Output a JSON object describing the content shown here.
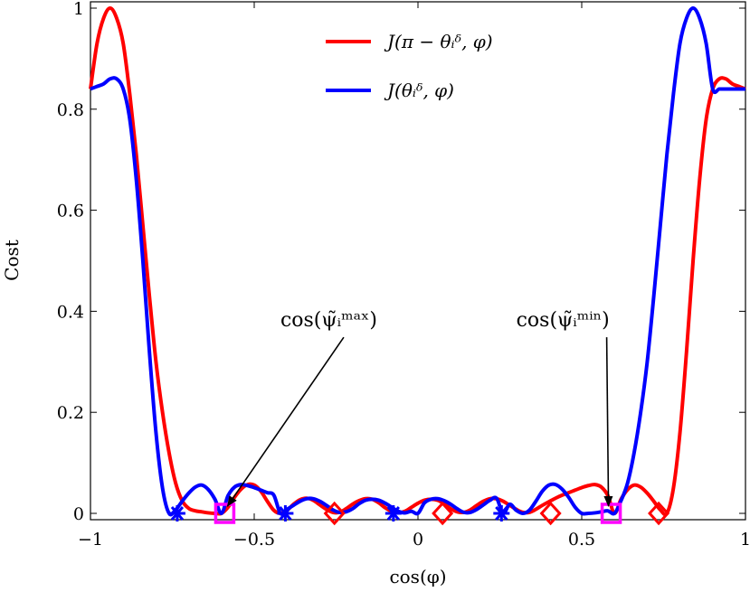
{
  "chart_data": {
    "type": "line",
    "xlabel": "cos(φ)",
    "ylabel": "Cost",
    "xlim": [
      -1,
      1
    ],
    "ylim": [
      -0.02,
      1.0
    ],
    "grid": false,
    "legend_position": "top-center",
    "x_ticks": [
      -1,
      -0.5,
      0,
      0.5,
      1
    ],
    "x_tick_labels": [
      "−1",
      "−0.5",
      "0",
      "0.5",
      "1"
    ],
    "y_ticks": [
      0,
      0.2,
      0.4,
      0.6,
      0.8,
      1
    ],
    "y_tick_labels": [
      "0",
      "0.2",
      "0.4",
      "0.6",
      "0.8",
      "1"
    ],
    "series": [
      {
        "name": "J(π − θᵢᵟ, φ)",
        "color": "#ff0000",
        "x": [
          -1.0,
          -0.98,
          -0.96,
          -0.94,
          -0.92,
          -0.9,
          -0.88,
          -0.86,
          -0.84,
          -0.82,
          -0.8,
          -0.78,
          -0.76,
          -0.74,
          -0.72,
          -0.7,
          -0.68,
          -0.66,
          -0.64,
          -0.62,
          -0.6,
          -0.58,
          -0.56,
          -0.54,
          -0.52,
          -0.5,
          -0.48,
          -0.46,
          -0.44,
          -0.42,
          -0.4,
          -0.38,
          -0.36,
          -0.34,
          -0.32,
          -0.3,
          -0.28,
          -0.26,
          -0.24,
          -0.22,
          -0.2,
          -0.18,
          -0.16,
          -0.14,
          -0.12,
          -0.1,
          -0.08,
          -0.06,
          -0.04,
          -0.02,
          0.0,
          0.02,
          0.04,
          0.06,
          0.08,
          0.1,
          0.12,
          0.14,
          0.16,
          0.18,
          0.2,
          0.22,
          0.24,
          0.26,
          0.28,
          0.3,
          0.32,
          0.34,
          0.36,
          0.38,
          0.4,
          0.42,
          0.44,
          0.46,
          0.48,
          0.5,
          0.52,
          0.54,
          0.56,
          0.58,
          0.6,
          0.62,
          0.64,
          0.66,
          0.68,
          0.7,
          0.72,
          0.74,
          0.76,
          0.78,
          0.8,
          0.82,
          0.84,
          0.86,
          0.88,
          0.9,
          0.92,
          0.94,
          0.96,
          0.98,
          1.0
        ],
        "y": [
          0.84,
          0.93,
          0.98,
          1.0,
          0.98,
          0.93,
          0.83,
          0.71,
          0.57,
          0.43,
          0.3,
          0.2,
          0.12,
          0.06,
          0.025,
          0.01,
          0.005,
          0.003,
          0.001,
          0.0,
          0.0,
          0.012,
          0.032,
          0.048,
          0.057,
          0.056,
          0.044,
          0.024,
          0.006,
          0.0,
          0.006,
          0.018,
          0.027,
          0.03,
          0.026,
          0.017,
          0.008,
          0.002,
          0.002,
          0.009,
          0.018,
          0.025,
          0.029,
          0.028,
          0.021,
          0.011,
          0.004,
          0.001,
          0.004,
          0.012,
          0.02,
          0.026,
          0.028,
          0.026,
          0.019,
          0.009,
          0.003,
          0.002,
          0.007,
          0.016,
          0.024,
          0.029,
          0.029,
          0.024,
          0.016,
          0.008,
          0.002,
          0.002,
          0.008,
          0.016,
          0.023,
          0.03,
          0.036,
          0.041,
          0.046,
          0.051,
          0.055,
          0.057,
          0.052,
          0.035,
          0.0,
          0.028,
          0.047,
          0.056,
          0.052,
          0.04,
          0.024,
          0.007,
          0.0,
          0.05,
          0.16,
          0.32,
          0.5,
          0.66,
          0.78,
          0.84,
          0.86,
          0.86,
          0.85,
          0.845,
          0.84
        ]
      },
      {
        "name": "J(θᵢᵟ, φ)",
        "color": "#0000ff",
        "x": [
          -1.0,
          -0.98,
          -0.96,
          -0.94,
          -0.92,
          -0.9,
          -0.88,
          -0.86,
          -0.84,
          -0.82,
          -0.8,
          -0.78,
          -0.76,
          -0.74,
          -0.72,
          -0.7,
          -0.68,
          -0.66,
          -0.64,
          -0.62,
          -0.6,
          -0.58,
          -0.56,
          -0.54,
          -0.52,
          -0.5,
          -0.48,
          -0.46,
          -0.44,
          -0.42,
          -0.4,
          -0.38,
          -0.36,
          -0.34,
          -0.32,
          -0.3,
          -0.28,
          -0.26,
          -0.24,
          -0.22,
          -0.2,
          -0.18,
          -0.16,
          -0.14,
          -0.12,
          -0.1,
          -0.08,
          -0.06,
          -0.04,
          -0.02,
          0.0,
          0.02,
          0.04,
          0.06,
          0.08,
          0.1,
          0.12,
          0.14,
          0.16,
          0.18,
          0.2,
          0.22,
          0.24,
          0.26,
          0.28,
          0.3,
          0.32,
          0.34,
          0.36,
          0.38,
          0.4,
          0.42,
          0.44,
          0.46,
          0.48,
          0.5,
          0.52,
          0.54,
          0.56,
          0.58,
          0.6,
          0.62,
          0.64,
          0.66,
          0.68,
          0.7,
          0.72,
          0.74,
          0.76,
          0.78,
          0.8,
          0.82,
          0.84,
          0.86,
          0.88,
          0.9,
          0.92,
          0.94,
          0.96,
          0.98,
          1.0
        ],
        "y": [
          0.84,
          0.845,
          0.85,
          0.86,
          0.86,
          0.84,
          0.78,
          0.66,
          0.5,
          0.32,
          0.16,
          0.05,
          0.0,
          0.007,
          0.024,
          0.04,
          0.052,
          0.056,
          0.047,
          0.028,
          0.0,
          0.035,
          0.052,
          0.057,
          0.055,
          0.051,
          0.046,
          0.041,
          0.036,
          0.0,
          0.008,
          0.016,
          0.024,
          0.029,
          0.029,
          0.024,
          0.016,
          0.007,
          0.002,
          0.003,
          0.009,
          0.019,
          0.026,
          0.028,
          0.026,
          0.02,
          0.012,
          0.004,
          0.001,
          0.004,
          0.0,
          0.021,
          0.028,
          0.029,
          0.025,
          0.018,
          0.009,
          0.002,
          0.002,
          0.008,
          0.017,
          0.026,
          0.03,
          0.0,
          0.018,
          0.006,
          0.0,
          0.006,
          0.024,
          0.044,
          0.056,
          0.057,
          0.048,
          0.032,
          0.012,
          0.0,
          0.0,
          0.001,
          0.003,
          0.005,
          0.0,
          0.025,
          0.06,
          0.12,
          0.2,
          0.3,
          0.43,
          0.57,
          0.71,
          0.83,
          0.93,
          0.98,
          1.0,
          0.98,
          0.93,
          0.84,
          0.84,
          0.84,
          0.84,
          0.84,
          0.84
        ]
      }
    ],
    "markers": {
      "blue_asterisks": {
        "color": "#0000ff",
        "x": [
          -0.735,
          -0.405,
          -0.075,
          0.255
        ],
        "y": [
          0,
          0,
          0,
          0
        ]
      },
      "red_diamonds": {
        "color": "#ff0000",
        "x": [
          -0.255,
          0.075,
          0.405,
          0.735
        ],
        "y": [
          0,
          0,
          0,
          0
        ]
      },
      "magenta_squares": {
        "color": "#ff00ff",
        "x": [
          -0.59,
          0.59
        ],
        "y": [
          0,
          0
        ]
      }
    },
    "legend": [
      {
        "label": "J(π − θᵢᵟ, φ)",
        "color": "#ff0000"
      },
      {
        "label": "J(θᵢᵟ, φ)",
        "color": "#0000ff"
      }
    ],
    "annotations": [
      {
        "text": "cos(ψ̃ᵢᵐᵃˣ)",
        "target_x": -0.59,
        "target_y": 0.0,
        "text_x": -0.42,
        "text_y": 0.37
      },
      {
        "text": "cos(ψ̃ᵢᵐⁱⁿ)",
        "target_x": 0.59,
        "target_y": 0.0,
        "text_x": 0.3,
        "text_y": 0.37
      }
    ]
  }
}
